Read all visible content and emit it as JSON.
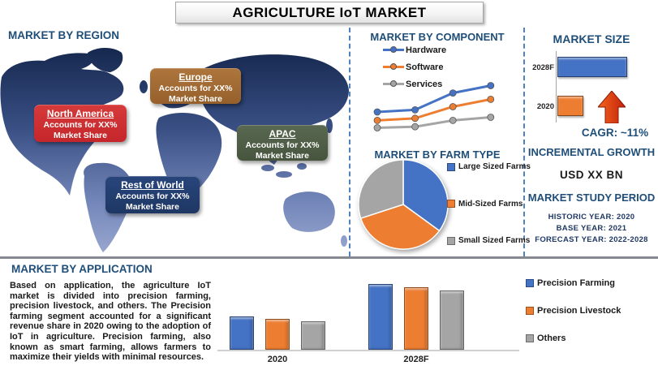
{
  "title": "AGRICULTURE IoT MARKET",
  "colors": {
    "heading_blue": "#1F4E79",
    "series_blue": "#4472C4",
    "series_orange": "#ED7D31",
    "series_gray": "#A5A5A5",
    "arrow_red": "#C3200B",
    "divider_dash_blue": "#4f81bd"
  },
  "regions": {
    "heading": "MARKET BY REGION",
    "callouts": [
      {
        "name": "North America",
        "line1": "Accounts for XX%",
        "line2": "Market Share",
        "color": "#C4262B",
        "color_top": "#D63A3A"
      },
      {
        "name": "Europe",
        "line1": "Accounts for XX%",
        "line2": "Market Share",
        "color": "#96602C",
        "color_top": "#AE763C"
      },
      {
        "name": "APAC",
        "line1": "Accounts for XX%",
        "line2": "Market Share",
        "color": "#47553F",
        "color_top": "#596850"
      },
      {
        "name": "Rest of World",
        "line1": "Accounts for XX%",
        "line2": "Market Share",
        "color": "#1E3763",
        "color_top": "#28457C"
      }
    ]
  },
  "component": {
    "heading": "MARKET BY COMPONENT"
  },
  "farm_type": {
    "heading": "MARKET BY FARM TYPE"
  },
  "market_size": {
    "heading": "MARKET SIZE",
    "cagr_label": "CAGR:  ~11%",
    "incremental_heading": "INCREMENTAL GROWTH",
    "incremental_value": "USD XX BN",
    "study_heading": "MARKET STUDY PERIOD",
    "study_lines": [
      "HISTORIC YEAR: 2020",
      "BASE YEAR: 2021",
      "FORECAST YEAR: 2022-2028"
    ]
  },
  "application": {
    "heading": "MARKET BY APPLICATION",
    "paragraph": "Based on application, the agriculture IoT market is divided into precision farming, precision livestock, and others. The Precision farming segment accounted for a significant revenue share in 2020 owing to the adoption of IoT in agriculture. Precision farming, also known as smart farming, allows farmers to maximize their yields with minimal resources."
  },
  "chart_data": [
    {
      "id": "component-line",
      "type": "line",
      "title": "MARKET BY COMPONENT",
      "x_labels": [],
      "axes_visible": false,
      "grid": false,
      "legend_position": "top-left-vertical",
      "series": [
        {
          "name": "Hardware",
          "color": "#4472C4",
          "values": [
            30,
            32,
            48,
            55
          ]
        },
        {
          "name": "Software",
          "color": "#ED7D31",
          "values": [
            22,
            24,
            35,
            42
          ]
        },
        {
          "name": "Services",
          "color": "#A5A5A5",
          "values": [
            15,
            16,
            22,
            25
          ]
        }
      ],
      "note": "values are relative estimates; no axis labels shown in source"
    },
    {
      "id": "farm-type-pie",
      "type": "pie",
      "title": "MARKET BY FARM TYPE",
      "labels": [
        "Large Sized Farms",
        "Mid-Sized Farms",
        "Small Sized Farms"
      ],
      "values": [
        35,
        35,
        30
      ],
      "colors": [
        "#4472C4",
        "#ED7D31",
        "#A5A5A5"
      ],
      "legend_position": "right",
      "start_angle_deg": -90,
      "note": "slice shares estimated from pie geometry; no data labels shown"
    },
    {
      "id": "market-size-bars",
      "type": "bar",
      "orientation": "horizontal",
      "title": "MARKET SIZE",
      "categories": [
        "2028F",
        "2020"
      ],
      "values": [
        85,
        32
      ],
      "colors": [
        "#4472C4",
        "#ED7D31"
      ],
      "note": "bar lengths are relative estimates; values unlabeled (XX BN)"
    },
    {
      "id": "application-bars",
      "type": "bar",
      "orientation": "vertical-grouped",
      "title": "MARKET BY APPLICATION",
      "categories": [
        "2020",
        "2028F"
      ],
      "series": [
        {
          "name": "Precision Farming",
          "color": "#4472C4",
          "values": [
            41,
            81
          ]
        },
        {
          "name": "Precision Livestock",
          "color": "#ED7D31",
          "values": [
            38,
            77
          ]
        },
        {
          "name": "Others",
          "color": "#A5A5A5",
          "values": [
            35,
            73
          ]
        }
      ],
      "legend_position": "right",
      "note": "heights are relative estimates; y-axis not shown"
    }
  ]
}
